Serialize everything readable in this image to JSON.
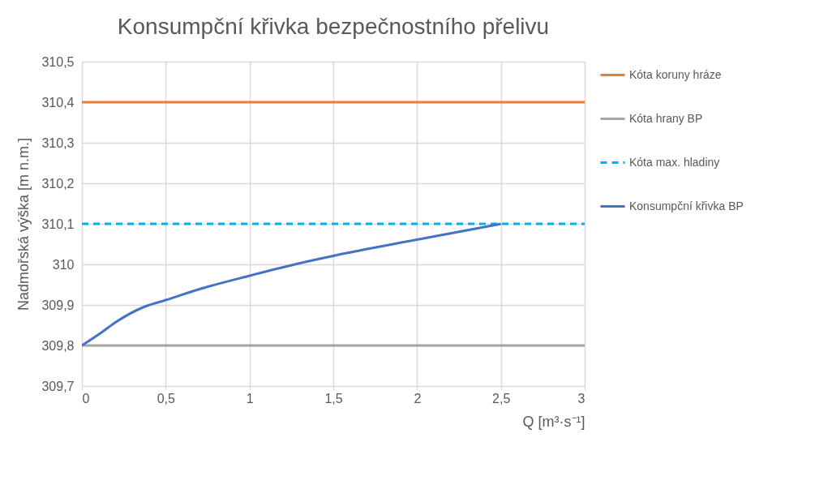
{
  "chart_data": {
    "type": "line",
    "title": "Konsumpční křivka bezpečnostního přelivu",
    "xlabel": "Q [m³·s⁻¹]",
    "ylabel": "Nadmořská výška [m n.m.]",
    "xlim": [
      0,
      3
    ],
    "xticks": [
      0,
      {
        "value": 0.5,
        "label": "0,5"
      },
      1,
      {
        "value": 1.5,
        "label": "1,5"
      },
      2,
      {
        "value": 2.5,
        "label": "2,5"
      },
      3
    ],
    "ylim": [
      309.7,
      310.5
    ],
    "yticks": [
      {
        "value": 309.7,
        "label": "309,7"
      },
      {
        "value": 309.8,
        "label": "309,8"
      },
      {
        "value": 309.9,
        "label": "309,9"
      },
      310,
      {
        "value": 310.1,
        "label": "310,1"
      },
      {
        "value": 310.2,
        "label": "310,2"
      },
      {
        "value": 310.3,
        "label": "310,3"
      },
      {
        "value": 310.4,
        "label": "310,4"
      },
      {
        "value": 310.5,
        "label": "310,5"
      }
    ],
    "grid": true,
    "legend": "right",
    "series": [
      {
        "name": "Kóta koruny hráze",
        "color": "#ed7d31",
        "line_style": "solid",
        "x": [
          0,
          3
        ],
        "values": [
          310.4,
          310.4
        ]
      },
      {
        "name": "Kóta hrany BP",
        "color": "#a5a5a5",
        "line_style": "solid",
        "x": [
          0,
          3
        ],
        "values": [
          309.8,
          309.8
        ]
      },
      {
        "name": "Kóta max. hladiny",
        "color": "#00b0f0",
        "line_style": "dashed",
        "x": [
          0,
          3
        ],
        "values": [
          310.1,
          310.1
        ]
      },
      {
        "name": "Konsumpční křivka BP",
        "color": "#4472c4",
        "line_style": "solid",
        "x": [
          0,
          0.12,
          0.2,
          0.37,
          0.5,
          0.71,
          1.0,
          1.27,
          1.5,
          2.0,
          2.5
        ],
        "values": [
          309.8,
          309.833,
          309.857,
          309.895,
          309.912,
          309.94,
          309.972,
          310.0,
          310.021,
          310.061,
          310.1
        ]
      }
    ]
  }
}
